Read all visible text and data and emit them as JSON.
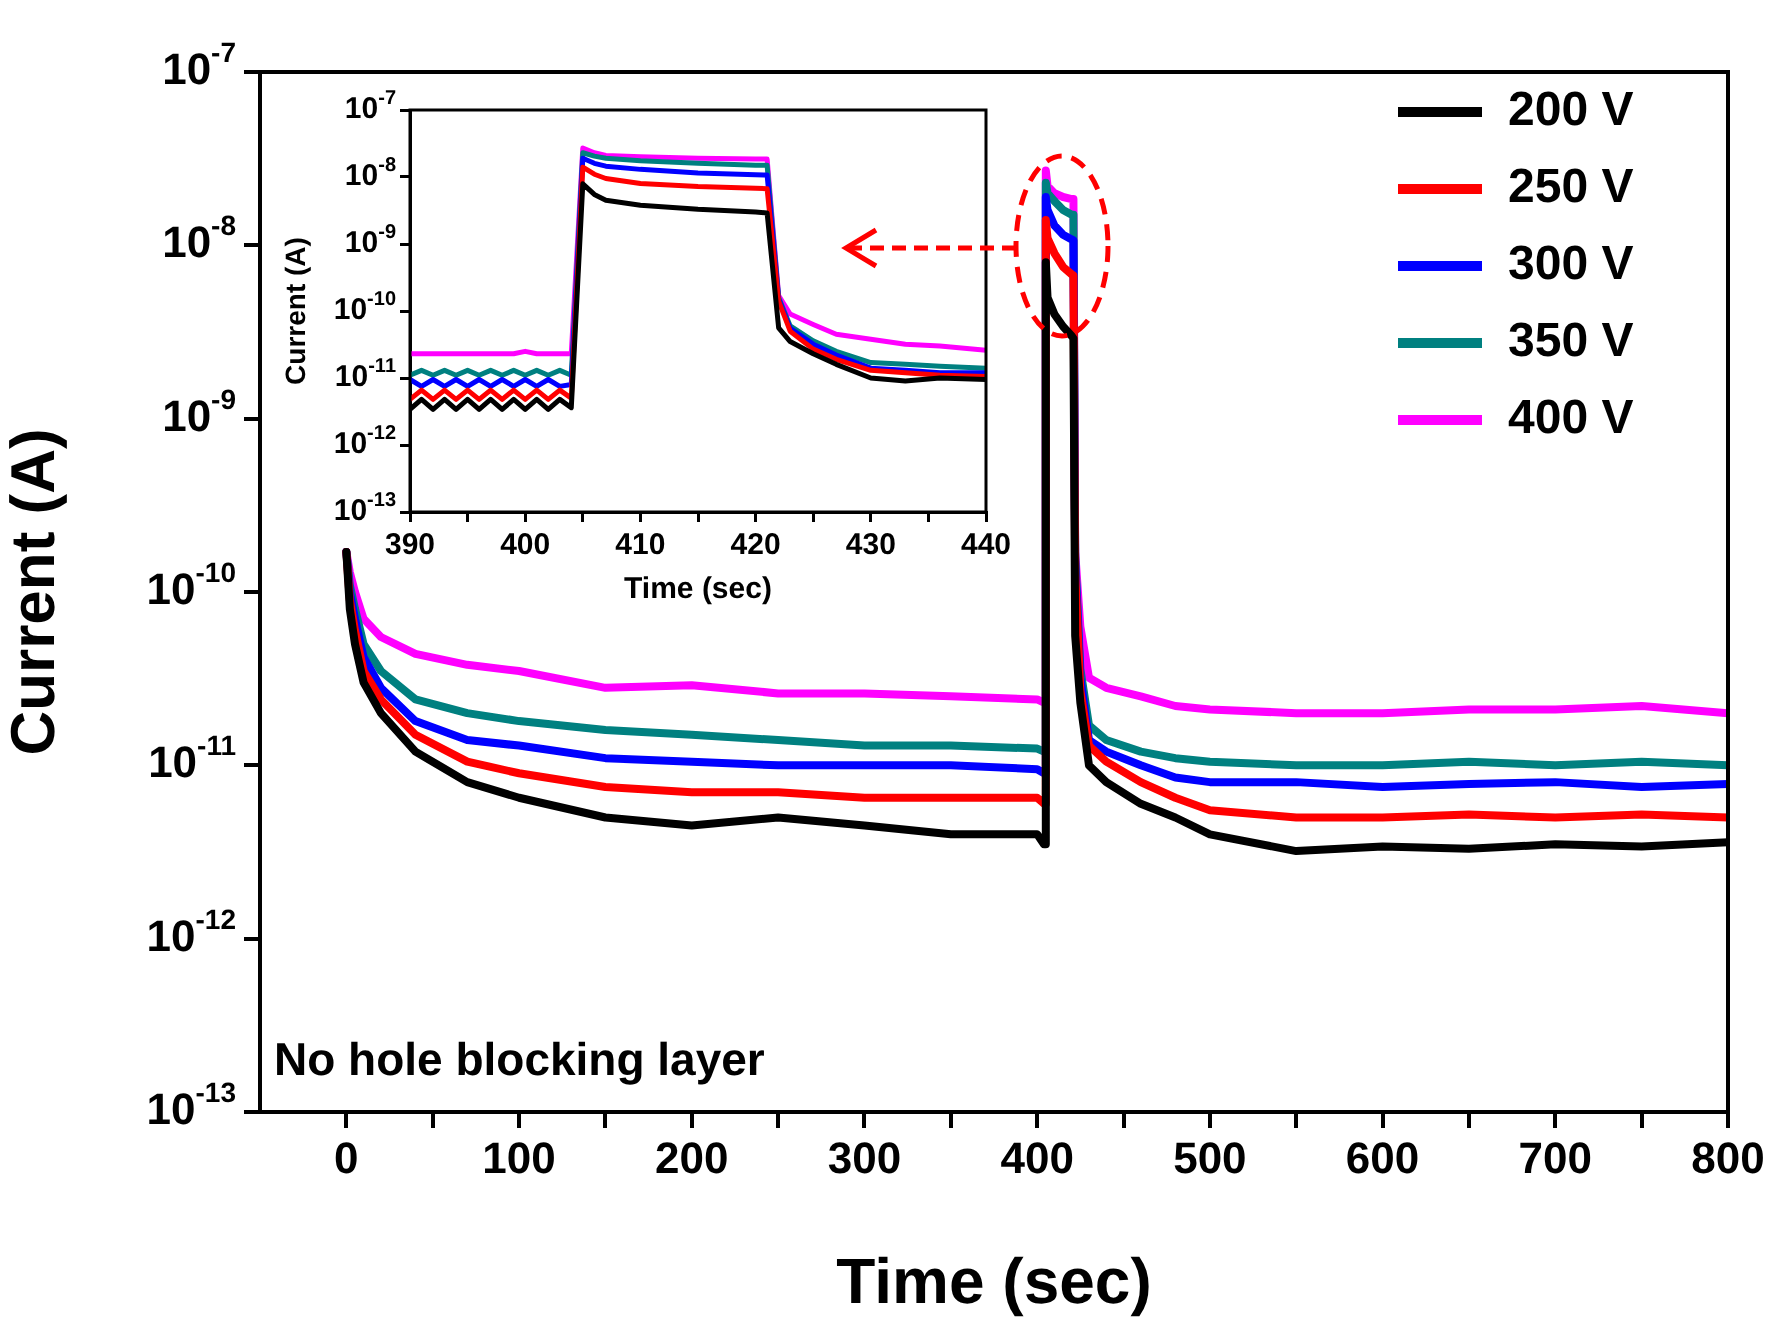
{
  "chart_data": [
    {
      "type": "line",
      "xlabel": "Time (sec)",
      "ylabel": "Current (A)",
      "log": "y",
      "legend": "top right",
      "line_style": "solid",
      "annotations": [
        "No hole blocking layer"
      ],
      "x": [
        0,
        2,
        5,
        10,
        20,
        40,
        70,
        100,
        150,
        200,
        250,
        300,
        350,
        400,
        404,
        405,
        406,
        410,
        415,
        420,
        421,
        422,
        425,
        430,
        440,
        460,
        480,
        500,
        550,
        600,
        650,
        700,
        750,
        800
      ],
      "xlim": [
        -50,
        800
      ],
      "xticks": [
        0,
        {
          "value": 50,
          "label": null
        },
        100,
        {
          "value": 150,
          "label": null
        },
        200,
        {
          "value": 250,
          "label": null
        },
        300,
        {
          "value": 350,
          "label": null
        },
        400,
        {
          "value": 450,
          "label": null
        },
        500,
        {
          "value": 550,
          "label": null
        },
        600,
        {
          "value": 650,
          "label": null
        },
        700,
        {
          "value": 750,
          "label": null
        },
        800
      ],
      "ylim": [
        1e-13,
        1e-07
      ],
      "yticks": [
        {
          "value": 1e-13,
          "label": "10$^{-13}$"
        },
        {
          "value": 1e-12,
          "label": "10$^{-12}$"
        },
        {
          "value": 1e-11,
          "label": "10$^{-11}$"
        },
        {
          "value": 1e-10,
          "label": "10$^{-10}$"
        },
        {
          "value": 1e-09,
          "label": "10$^{-9}$"
        },
        {
          "value": 1e-08,
          "label": "10$^{-8}$"
        },
        {
          "value": 1e-07,
          "label": "10$^{-7}$"
        }
      ],
      "series": [
        {
          "name": "200 V",
          "color": "#000000",
          "values": [
            1.7e-10,
            8e-11,
            5e-11,
            3e-11,
            2e-11,
            1.2e-11,
            8e-12,
            6.5e-12,
            5e-12,
            4.5e-12,
            5e-12,
            4.5e-12,
            4e-12,
            4e-12,
            3.5e-12,
            8e-09,
            5e-09,
            4e-09,
            3.4e-09,
            3e-09,
            2.9e-09,
            5.6e-11,
            2.3e-11,
            1e-11,
            8e-12,
            6e-12,
            5e-12,
            4e-12,
            3.2e-12,
            3.4e-12,
            3.3e-12,
            3.5e-12,
            3.4e-12,
            3.6e-12
          ]
        },
        {
          "name": "250 V",
          "color": "#ff0000",
          "values": [
            1.7e-10,
            9e-11,
            6e-11,
            3.5e-11,
            2.4e-11,
            1.5e-11,
            1.05e-11,
            9e-12,
            7.5e-12,
            7e-12,
            7e-12,
            6.5e-12,
            6.5e-12,
            6.5e-12,
            6e-12,
            1.4e-08,
            1.1e-08,
            9e-09,
            7.5e-09,
            6.8e-09,
            6.7e-09,
            1.3e-10,
            2.7e-11,
            1.3e-11,
            1.05e-11,
            8e-12,
            6.5e-12,
            5.5e-12,
            5e-12,
            5e-12,
            5.2e-12,
            5e-12,
            5.2e-12,
            5e-12
          ]
        },
        {
          "name": "300 V",
          "color": "#0000ff",
          "values": [
            1.7e-10,
            1e-10,
            7e-11,
            4.2e-11,
            2.8e-11,
            1.8e-11,
            1.4e-11,
            1.3e-11,
            1.1e-11,
            1.05e-11,
            1e-11,
            1e-11,
            1e-11,
            9.5e-12,
            9e-12,
            1.9e-08,
            1.6e-08,
            1.3e-08,
            1.15e-08,
            1.08e-08,
            1.07e-08,
            1.5e-10,
            3.2e-11,
            1.4e-11,
            1.2e-11,
            1e-11,
            8.5e-12,
            8e-12,
            8e-12,
            7.5e-12,
            7.8e-12,
            8e-12,
            7.5e-12,
            7.8e-12
          ]
        },
        {
          "name": "350 V",
          "color": "#008080",
          "values": [
            1.7e-10,
            1.1e-10,
            8e-11,
            5e-11,
            3.5e-11,
            2.4e-11,
            2e-11,
            1.8e-11,
            1.6e-11,
            1.5e-11,
            1.4e-11,
            1.3e-11,
            1.3e-11,
            1.25e-11,
            1.2e-11,
            2.3e-08,
            2e-08,
            1.8e-08,
            1.6e-08,
            1.5e-08,
            1.5e-08,
            1.6e-10,
            3.6e-11,
            1.7e-11,
            1.4e-11,
            1.2e-11,
            1.1e-11,
            1.05e-11,
            1e-11,
            1e-11,
            1.05e-11,
            1e-11,
            1.05e-11,
            1e-11
          ]
        },
        {
          "name": "400 V",
          "color": "#ff00ff",
          "values": [
            1.7e-10,
            1.3e-10,
            1e-10,
            7e-11,
            5.5e-11,
            4.4e-11,
            3.8e-11,
            3.5e-11,
            2.8e-11,
            2.9e-11,
            2.6e-11,
            2.6e-11,
            2.5e-11,
            2.4e-11,
            2.3e-11,
            2.7e-08,
            2.2e-08,
            2e-08,
            1.9e-08,
            1.85e-08,
            1.85e-08,
            1.7e-10,
            6.3e-11,
            3.2e-11,
            2.8e-11,
            2.5e-11,
            2.2e-11,
            2.1e-11,
            2e-11,
            2e-11,
            2.1e-11,
            2.1e-11,
            2.2e-11,
            2e-11
          ]
        }
      ]
    },
    {
      "type": "line",
      "xlabel": "Time (sec)",
      "ylabel": "Current (A)",
      "log": "y",
      "line_style": "solid",
      "x": [
        390,
        391,
        392,
        393,
        394,
        395,
        396,
        397,
        398,
        399,
        400,
        401,
        402,
        403,
        404,
        405,
        406,
        407,
        410,
        415,
        420,
        421,
        422,
        423,
        425,
        427,
        430,
        433,
        436,
        440
      ],
      "xlim": [
        390,
        440
      ],
      "xticks": [
        390,
        {
          "value": 395,
          "label": null
        },
        400,
        {
          "value": 405,
          "label": null
        },
        410,
        {
          "value": 415,
          "label": null
        },
        420,
        {
          "value": 425,
          "label": null
        },
        430,
        {
          "value": 435,
          "label": null
        },
        440
      ],
      "ylim": [
        1e-13,
        1e-07
      ],
      "yticks": [
        {
          "value": 1e-13,
          "label": "10$^{-13}$"
        },
        {
          "value": 1e-12,
          "label": "10$^{-12}$"
        },
        {
          "value": 1e-11,
          "label": "10$^{-11}$"
        },
        {
          "value": 1e-10,
          "label": "10$^{-10}$"
        },
        {
          "value": 1e-09,
          "label": "10$^{-9}$"
        },
        {
          "value": 1e-08,
          "label": "10$^{-8}$"
        },
        {
          "value": 1e-07,
          "label": "10$^{-7}$"
        }
      ],
      "series": [
        {
          "color": "#000000",
          "values": [
            3.4e-12,
            4.8e-12,
            3.4e-12,
            4.8e-12,
            3.4e-12,
            4.8e-12,
            3.4e-12,
            4.8e-12,
            3.4e-12,
            4.8e-12,
            3.4e-12,
            4.8e-12,
            3.4e-12,
            4.8e-12,
            3.6e-12,
            7.9e-09,
            5.5e-09,
            4.5e-09,
            3.8e-09,
            3.3e-09,
            3e-09,
            2.9e-09,
            5.6e-11,
            3.5e-11,
            2.3e-11,
            1.6e-11,
            1e-11,
            9e-12,
            1e-11,
            9.5e-12
          ]
        },
        {
          "color": "#ff0000",
          "values": [
            4.8e-12,
            6.6e-12,
            4.8e-12,
            6.6e-12,
            4.8e-12,
            6.6e-12,
            4.8e-12,
            6.6e-12,
            4.8e-12,
            6.6e-12,
            4.8e-12,
            6.6e-12,
            4.8e-12,
            6.6e-12,
            5e-12,
            1.4e-08,
            1.1e-08,
            9.5e-09,
            8e-09,
            7.2e-09,
            6.8e-09,
            6.7e-09,
            1.4e-10,
            5e-11,
            2.7e-11,
            1.9e-11,
            1.3e-11,
            1.2e-11,
            1.1e-11,
            1.05e-11
          ]
        },
        {
          "color": "#0000ff",
          "values": [
            9.5e-12,
            7.5e-12,
            9.5e-12,
            7.5e-12,
            9.5e-12,
            7.5e-12,
            9.5e-12,
            7.5e-12,
            9.5e-12,
            7.5e-12,
            9.5e-12,
            7.5e-12,
            9.5e-12,
            7.5e-12,
            8e-12,
            1.9e-08,
            1.6e-08,
            1.45e-08,
            1.3e-08,
            1.15e-08,
            1.08e-08,
            1.07e-08,
            1.5e-10,
            5.5e-11,
            3.2e-11,
            2.2e-11,
            1.4e-11,
            1.3e-11,
            1.2e-11,
            1.2e-11
          ]
        },
        {
          "color": "#008080",
          "values": [
            1.1e-11,
            1.3e-11,
            1.1e-11,
            1.3e-11,
            1.1e-11,
            1.3e-11,
            1.1e-11,
            1.3e-11,
            1.1e-11,
            1.3e-11,
            1.1e-11,
            1.3e-11,
            1.1e-11,
            1.3e-11,
            1.1e-11,
            2.3e-08,
            2.05e-08,
            1.9e-08,
            1.75e-08,
            1.6e-08,
            1.5e-08,
            1.5e-08,
            1.6e-10,
            6e-11,
            3.6e-11,
            2.5e-11,
            1.7e-11,
            1.6e-11,
            1.5e-11,
            1.4e-11
          ]
        },
        {
          "color": "#ff00ff",
          "values": [
            2.3e-11,
            2.3e-11,
            2.3e-11,
            2.3e-11,
            2.3e-11,
            2.3e-11,
            2.3e-11,
            2.3e-11,
            2.3e-11,
            2.3e-11,
            2.5e-11,
            2.3e-11,
            2.3e-11,
            2.3e-11,
            2.3e-11,
            2.7e-08,
            2.3e-08,
            2.1e-08,
            2e-08,
            1.9e-08,
            1.85e-08,
            1.85e-08,
            1.7e-10,
            9e-11,
            6.3e-11,
            4.5e-11,
            3.8e-11,
            3.2e-11,
            3e-11,
            2.6e-11
          ]
        }
      ]
    }
  ]
}
